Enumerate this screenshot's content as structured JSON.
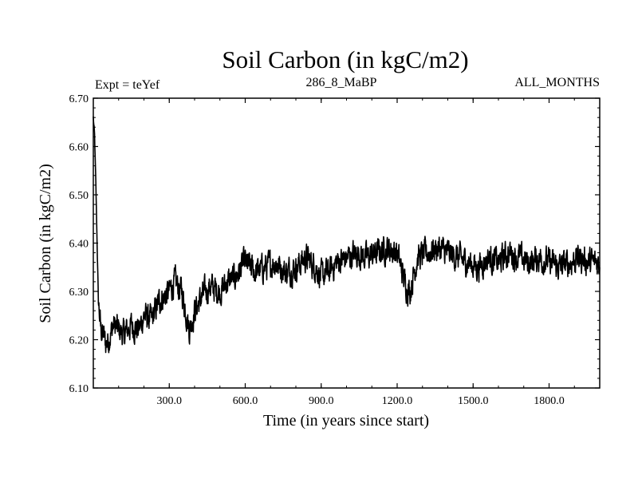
{
  "chart_data": {
    "type": "line",
    "title": "Soil Carbon (in kgC/m2)",
    "subtitle_left": "Expt = teYef",
    "subtitle_center": "286_8_MaBP",
    "subtitle_right": "ALL_MONTHS",
    "xlabel": "Time (in years since start)",
    "ylabel": "Soil Carbon (in kgC/m2)",
    "xlim": [
      0,
      2000
    ],
    "ylim": [
      6.1,
      6.7
    ],
    "xticks": [
      300,
      600,
      900,
      1200,
      1500,
      1800
    ],
    "xtick_labels": [
      "300.0",
      "600.0",
      "900.0",
      "1200.0",
      "1500.0",
      "1800.0"
    ],
    "yticks": [
      6.1,
      6.2,
      6.3,
      6.4,
      6.5,
      6.6,
      6.7
    ],
    "ytick_labels": [
      "6.10",
      "6.20",
      "6.30",
      "6.40",
      "6.50",
      "6.60",
      "6.70"
    ],
    "series": [
      {
        "name": "Soil Carbon",
        "color": "#000000",
        "x": [
          0,
          5,
          10,
          15,
          20,
          30,
          40,
          50,
          60,
          80,
          100,
          120,
          150,
          180,
          200,
          230,
          260,
          300,
          320,
          350,
          380,
          400,
          430,
          460,
          500,
          530,
          560,
          600,
          640,
          680,
          720,
          760,
          800,
          840,
          880,
          900,
          930,
          960,
          1000,
          1040,
          1080,
          1120,
          1160,
          1200,
          1230,
          1250,
          1280,
          1320,
          1360,
          1400,
          1440,
          1480,
          1520,
          1560,
          1600,
          1640,
          1680,
          1720,
          1760,
          1800,
          1840,
          1880,
          1920,
          1960,
          2000
        ],
        "values": [
          6.66,
          6.62,
          6.52,
          6.4,
          6.28,
          6.22,
          6.21,
          6.19,
          6.2,
          6.23,
          6.22,
          6.21,
          6.23,
          6.22,
          6.25,
          6.24,
          6.28,
          6.3,
          6.32,
          6.3,
          6.22,
          6.26,
          6.29,
          6.31,
          6.3,
          6.32,
          6.33,
          6.36,
          6.34,
          6.35,
          6.36,
          6.34,
          6.35,
          6.37,
          6.35,
          6.33,
          6.34,
          6.36,
          6.37,
          6.38,
          6.37,
          6.38,
          6.39,
          6.38,
          6.32,
          6.3,
          6.37,
          6.38,
          6.39,
          6.38,
          6.37,
          6.36,
          6.35,
          6.37,
          6.36,
          6.38,
          6.37,
          6.36,
          6.37,
          6.36,
          6.35,
          6.36,
          6.37,
          6.36,
          6.36
        ]
      }
    ]
  }
}
